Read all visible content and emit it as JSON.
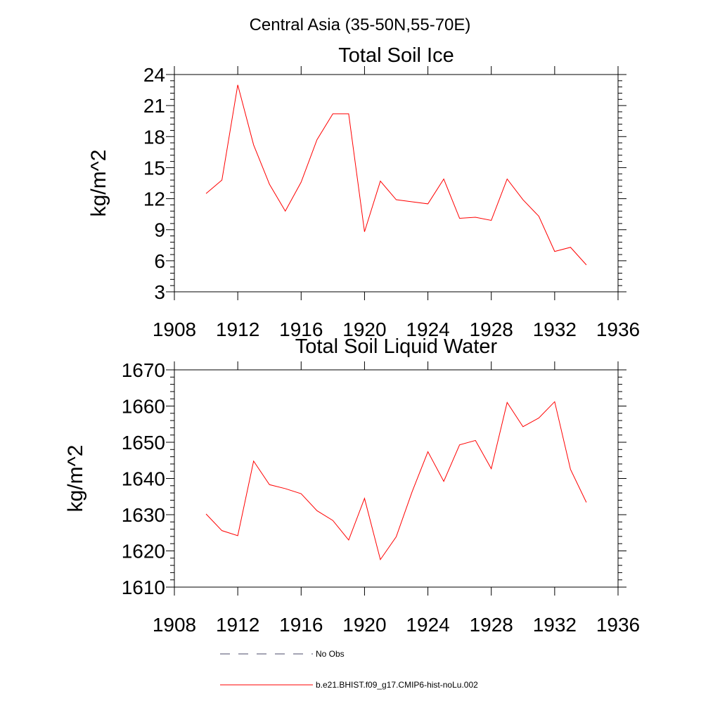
{
  "figure": {
    "suptitle": "Central Asia (35-50N,55-70E)"
  },
  "chart_data": [
    {
      "type": "line",
      "title": "Total Soil Ice",
      "xlabel": "",
      "ylabel": "kg/m^2",
      "xlim": [
        1908,
        1936
      ],
      "ylim": [
        3,
        24
      ],
      "xticks": [
        1908,
        1912,
        1916,
        1920,
        1924,
        1928,
        1932,
        1936
      ],
      "yticks": [
        3,
        6,
        9,
        12,
        15,
        18,
        21,
        24
      ],
      "grid": false,
      "series": [
        {
          "name": "b.e21.BHIST.f09_g17.CMIP6-hist-noLu.002",
          "color": "#ff0000",
          "x": [
            1910,
            1911,
            1912,
            1913,
            1914,
            1915,
            1916,
            1917,
            1918,
            1919,
            1920,
            1921,
            1922,
            1923,
            1924,
            1925,
            1926,
            1927,
            1928,
            1929,
            1930,
            1931,
            1932,
            1933,
            1934
          ],
          "y": [
            12.5,
            13.8,
            23.0,
            17.2,
            13.4,
            10.8,
            13.6,
            17.7,
            20.2,
            20.2,
            8.8,
            13.7,
            11.9,
            11.7,
            11.5,
            13.9,
            10.1,
            10.2,
            9.9,
            13.9,
            11.9,
            10.3,
            6.9,
            7.3,
            5.6
          ]
        }
      ]
    },
    {
      "type": "line",
      "title": "Total Soil Liquid Water",
      "xlabel": "",
      "ylabel": "kg/m^2",
      "xlim": [
        1908,
        1936
      ],
      "ylim": [
        1610,
        1670
      ],
      "xticks": [
        1908,
        1912,
        1916,
        1920,
        1924,
        1928,
        1932,
        1936
      ],
      "yticks": [
        1610,
        1620,
        1630,
        1640,
        1650,
        1660,
        1670
      ],
      "grid": false,
      "series": [
        {
          "name": "b.e21.BHIST.f09_g17.CMIP6-hist-noLu.002",
          "color": "#ff0000",
          "x": [
            1910,
            1911,
            1912,
            1913,
            1914,
            1915,
            1916,
            1917,
            1918,
            1919,
            1920,
            1921,
            1922,
            1923,
            1924,
            1925,
            1926,
            1927,
            1928,
            1929,
            1930,
            1931,
            1932,
            1933,
            1934
          ],
          "y": [
            1630.2,
            1625.6,
            1624.2,
            1644.8,
            1638.3,
            1637.2,
            1635.8,
            1631.1,
            1628.4,
            1623.0,
            1634.5,
            1617.6,
            1623.9,
            1636.3,
            1647.4,
            1639.2,
            1649.3,
            1650.5,
            1642.7,
            1661.0,
            1654.3,
            1656.7,
            1661.2,
            1642.5,
            1633.4
          ]
        }
      ]
    }
  ],
  "legend": {
    "placement": "bottom",
    "entries": [
      {
        "label": "No Obs",
        "style": "dashed",
        "color": "#4a4a6a"
      },
      {
        "label": "b.e21.BHIST.f09_g17.CMIP6-hist-noLu.002",
        "style": "solid",
        "color": "#ff0000"
      }
    ]
  }
}
